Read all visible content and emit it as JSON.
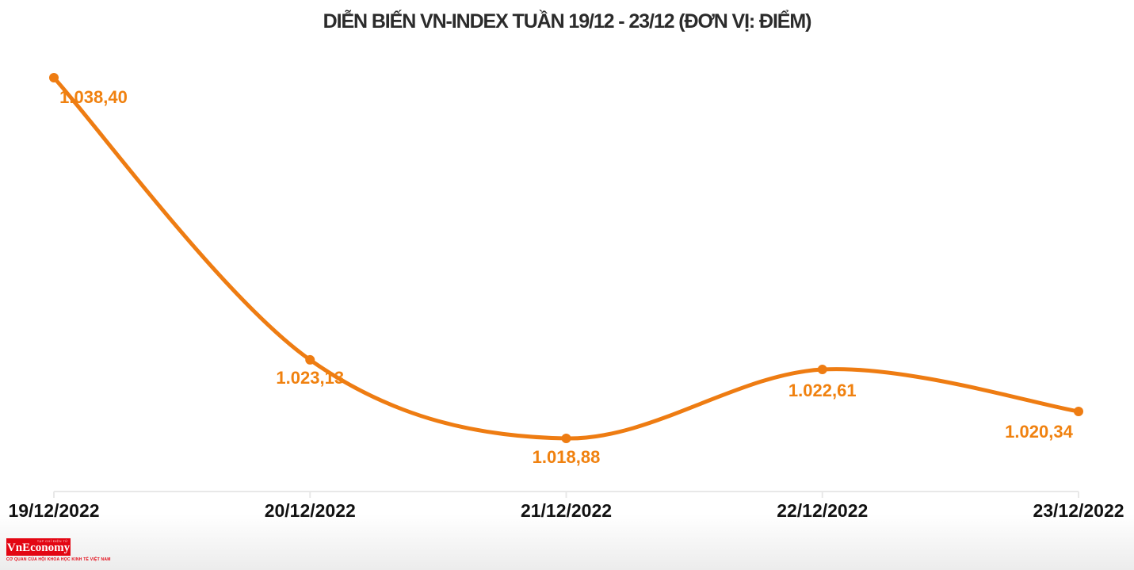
{
  "chart_data": {
    "type": "line",
    "title": "DIỄN BIẾN VN-INDEX TUẦN 19/12 - 23/12 (ĐƠN VỊ: ĐIỂM)",
    "series_name": "VN-Index",
    "unit": "ĐIỂM",
    "categories": [
      "19/12/2022",
      "20/12/2022",
      "21/12/2022",
      "22/12/2022",
      "23/12/2022"
    ],
    "values": [
      1038.4,
      1023.13,
      1018.88,
      1022.61,
      1020.34
    ],
    "point_labels": [
      "1.038,40",
      "1.023,13",
      "1.018,88",
      "1.022,61",
      "1.020,34"
    ],
    "line_color": "#EE7C12",
    "point_color": "#EE7C12",
    "point_label_color": "#F0810F",
    "title_color": "#2b2b2b",
    "axis_label_color": "#111111",
    "axis_line_color": "#e8e8e8",
    "grid": false,
    "legend": "none",
    "ylim": [
      1016,
      1040
    ]
  },
  "branding": {
    "logo_top_text": "TẠP CHÍ ĐIỆN TỬ",
    "logo_name": "VnEconomy",
    "logo_tagline": "CƠ QUAN CỦA HỘI KHOA HỌC KINH TẾ VIỆT NAM",
    "logo_bg_color": "#E30613",
    "logo_text_color": "#FFFFFF"
  }
}
